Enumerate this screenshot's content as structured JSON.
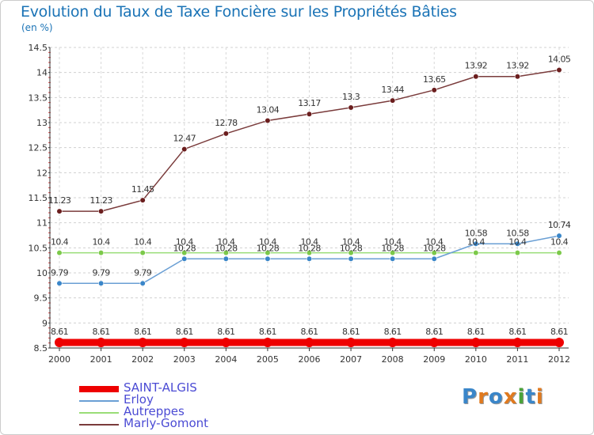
{
  "title": "Evolution du Taux de Taxe Foncière sur les Propriétés Bâties",
  "unit_label": "(en %)",
  "brand": {
    "text": "Proxiti"
  },
  "chart_data": {
    "type": "line",
    "title": "Evolution du Taux de Taxe Foncière sur les Propriétés Bâties",
    "ylabel": "(en %)",
    "xlabel": "",
    "x": [
      "2000",
      "2001",
      "2002",
      "2003",
      "2004",
      "2005",
      "2006",
      "2007",
      "2008",
      "2009",
      "2010",
      "2011",
      "2012"
    ],
    "ylim": [
      8.5,
      14.5
    ],
    "yticks": [
      "8.5",
      "9",
      "9.5",
      "10",
      "10.5",
      "11",
      "11.5",
      "12",
      "12.5",
      "13",
      "13.5",
      "14",
      "14.5"
    ],
    "legend_position": "bottom-left",
    "series": [
      {
        "name": "SAINT-ALGIS",
        "color": "#ee0000",
        "line_width": "thick",
        "values": [
          8.61,
          8.61,
          8.61,
          8.61,
          8.61,
          8.61,
          8.61,
          8.61,
          8.61,
          8.61,
          8.61,
          8.61,
          8.61
        ],
        "labels": [
          "8.61",
          "8.61",
          "8.61",
          "8.61",
          "8.61",
          "8.61",
          "8.61",
          "8.61",
          "8.61",
          "8.61",
          "8.61",
          "8.61",
          "8.61"
        ]
      },
      {
        "name": "Erloy",
        "color": "#6a9fd4",
        "marker_color": "#3a86c9",
        "values": [
          9.79,
          9.79,
          9.79,
          10.28,
          10.28,
          10.28,
          10.28,
          10.28,
          10.28,
          10.28,
          10.58,
          10.58,
          10.74
        ],
        "labels": [
          "9.79",
          "9.79",
          "9.79",
          "10.28",
          "10.28",
          "10.28",
          "10.28",
          "10.28",
          "10.28",
          "10.28",
          "10.58",
          "10.58",
          "10.74"
        ]
      },
      {
        "name": "Autreppes",
        "color": "#99dd77",
        "marker_color": "#7cc94a",
        "values": [
          10.4,
          10.4,
          10.4,
          10.4,
          10.4,
          10.4,
          10.4,
          10.4,
          10.4,
          10.4,
          10.4,
          10.4,
          10.4
        ],
        "labels": [
          "10.4",
          "10.4",
          "10.4",
          "10.4",
          "10.4",
          "10.4",
          "10.4",
          "10.4",
          "10.4",
          "10.4",
          "10.4",
          "10.4",
          "10.4"
        ]
      },
      {
        "name": "Marly-Gomont",
        "color": "#7a3b3b",
        "marker_color": "#6b1e1e",
        "values": [
          11.23,
          11.23,
          11.45,
          12.47,
          12.78,
          13.04,
          13.17,
          13.3,
          13.44,
          13.65,
          13.92,
          13.92,
          14.05
        ],
        "labels": [
          "11.23",
          "11.23",
          "11.45",
          "12.47",
          "12.78",
          "13.04",
          "13.17",
          "13.3",
          "13.44",
          "13.65",
          "13.92",
          "13.92",
          "14.05"
        ]
      }
    ]
  }
}
